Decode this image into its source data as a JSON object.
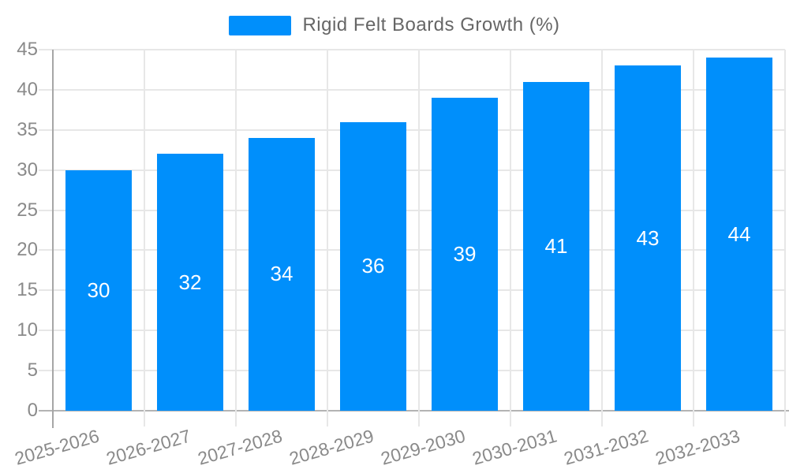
{
  "chart_data": {
    "type": "bar",
    "title": "",
    "legend": {
      "position": "top",
      "label": "Rigid Felt Boards Growth (%)"
    },
    "categories": [
      "2025-2026",
      "2026-2027",
      "2027-2028",
      "2028-2029",
      "2029-2030",
      "2030-2031",
      "2031-2032",
      "2032-2033"
    ],
    "series": [
      {
        "name": "Rigid Felt Boards Growth (%)",
        "values": [
          30,
          32,
          34,
          36,
          39,
          41,
          43,
          44
        ]
      }
    ],
    "ylim": [
      0,
      45
    ],
    "yticks": [
      0,
      5,
      10,
      15,
      20,
      25,
      30,
      35,
      40,
      45
    ],
    "grid": true,
    "xlabel": "",
    "ylabel": "",
    "colors": {
      "bar": "#008ffb",
      "value_label": "#ffffff",
      "gridline": "#e7e7e7",
      "axis_line": "#b3b3b3",
      "tick_label": "#8a8a8a",
      "legend_text": "#666666"
    }
  }
}
